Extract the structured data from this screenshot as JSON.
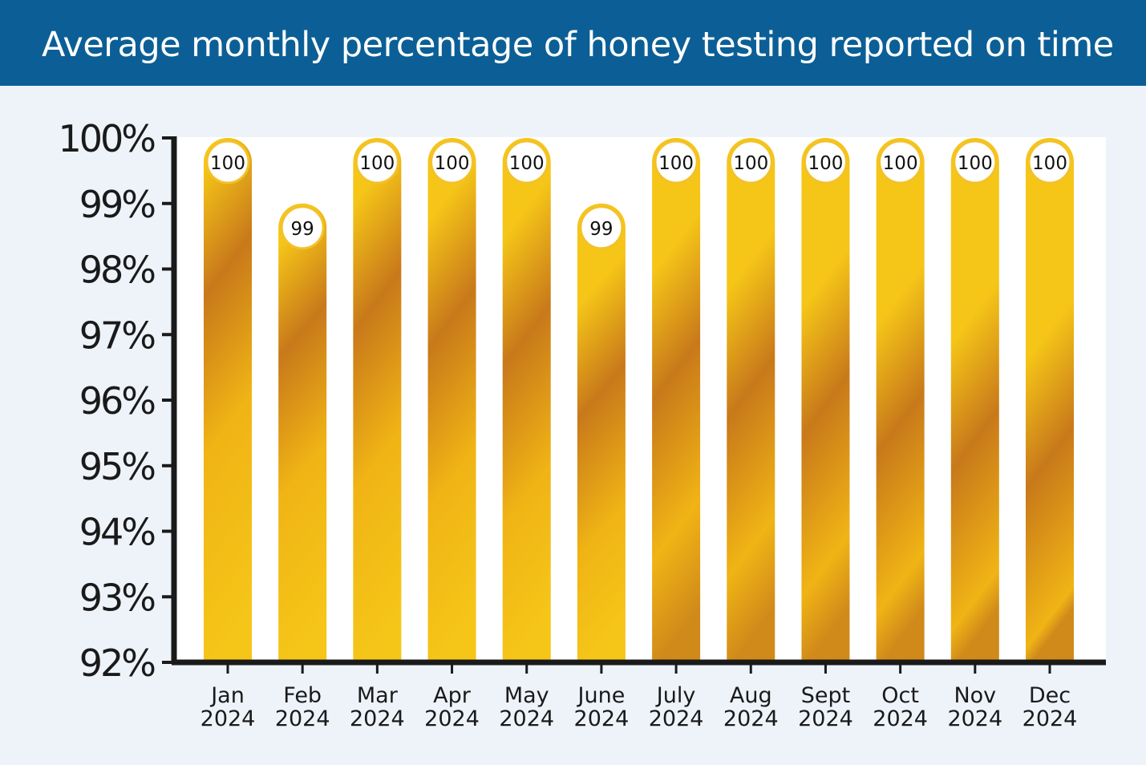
{
  "header": {
    "title": "Average monthly percentage of honey testing reported on time"
  },
  "colors": {
    "header_bg": "#0b5f96",
    "page_bg": "#eef3fa",
    "plot_bg": "#ffffff",
    "bar_light": "#f5c518",
    "bar_dark": "#c8791a",
    "axis": "#1a1a1a"
  },
  "chart_data": {
    "type": "bar",
    "title": "Average monthly percentage of honey testing reported on time",
    "xlabel": "",
    "ylabel": "",
    "ylim": [
      92,
      100
    ],
    "yticks": [
      92,
      93,
      94,
      95,
      96,
      97,
      98,
      99,
      100
    ],
    "ytick_labels": [
      "92%",
      "93%",
      "94%",
      "95%",
      "96%",
      "97%",
      "98%",
      "99%",
      "100%"
    ],
    "grid": true,
    "categories": [
      [
        "Jan",
        "2024"
      ],
      [
        "Feb",
        "2024"
      ],
      [
        "Mar",
        "2024"
      ],
      [
        "Apr",
        "2024"
      ],
      [
        "May",
        "2024"
      ],
      [
        "June",
        "2024"
      ],
      [
        "July",
        "2024"
      ],
      [
        "Aug",
        "2024"
      ],
      [
        "Sept",
        "2024"
      ],
      [
        "Oct",
        "2024"
      ],
      [
        "Nov",
        "2024"
      ],
      [
        "Dec",
        "2024"
      ]
    ],
    "values": [
      100,
      99,
      100,
      100,
      100,
      99,
      100,
      100,
      100,
      100,
      100,
      100
    ],
    "data_labels": [
      "100",
      "99",
      "100",
      "100",
      "100",
      "99",
      "100",
      "100",
      "100",
      "100",
      "100",
      "100"
    ]
  }
}
